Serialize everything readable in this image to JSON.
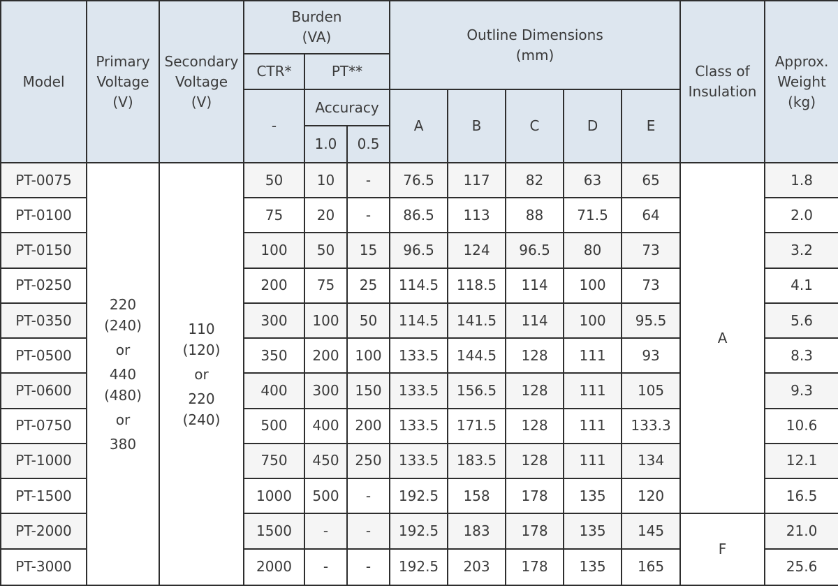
{
  "header": {
    "model": "Model",
    "primary_voltage": [
      "Primary",
      "Voltage",
      "(V)"
    ],
    "secondary_voltage": [
      "Secondary",
      "Voltage",
      "(V)"
    ],
    "burden": [
      "Burden",
      "(VA)"
    ],
    "ctr": "CTR*",
    "pt": "PT**",
    "dash": "-",
    "accuracy": "Accuracy",
    "acc_10": "1.0",
    "acc_05": "0.5",
    "outline": [
      "Outline Dimensions",
      "(mm)"
    ],
    "dim_a": "A",
    "dim_b": "B",
    "dim_c": "C",
    "dim_d": "D",
    "dim_e": "E",
    "insulation": [
      "Class of",
      "Insulation"
    ],
    "weight": [
      "Approx.",
      "Weight",
      "(kg)"
    ]
  },
  "primary_voltage_options": [
    "220",
    "(240)",
    "or",
    "440",
    "(480)",
    "or",
    "380"
  ],
  "secondary_voltage_options": [
    "110",
    "(120)",
    "or",
    "220",
    "(240)"
  ],
  "insulation_classes": [
    "A",
    "F"
  ],
  "rows": [
    {
      "model": "PT-0075",
      "ctr": "50",
      "acc10": "10",
      "acc05": "-",
      "a": "76.5",
      "b": "117",
      "c": "82",
      "d": "63",
      "e": "65",
      "weight": "1.8"
    },
    {
      "model": "PT-0100",
      "ctr": "75",
      "acc10": "20",
      "acc05": "-",
      "a": "86.5",
      "b": "113",
      "c": "88",
      "d": "71.5",
      "e": "64",
      "weight": "2.0"
    },
    {
      "model": "PT-0150",
      "ctr": "100",
      "acc10": "50",
      "acc05": "15",
      "a": "96.5",
      "b": "124",
      "c": "96.5",
      "d": "80",
      "e": "73",
      "weight": "3.2"
    },
    {
      "model": "PT-0250",
      "ctr": "200",
      "acc10": "75",
      "acc05": "25",
      "a": "114.5",
      "b": "118.5",
      "c": "114",
      "d": "100",
      "e": "73",
      "weight": "4.1"
    },
    {
      "model": "PT-0350",
      "ctr": "300",
      "acc10": "100",
      "acc05": "50",
      "a": "114.5",
      "b": "141.5",
      "c": "114",
      "d": "100",
      "e": "95.5",
      "weight": "5.6"
    },
    {
      "model": "PT-0500",
      "ctr": "350",
      "acc10": "200",
      "acc05": "100",
      "a": "133.5",
      "b": "144.5",
      "c": "128",
      "d": "111",
      "e": "93",
      "weight": "8.3"
    },
    {
      "model": "PT-0600",
      "ctr": "400",
      "acc10": "300",
      "acc05": "150",
      "a": "133.5",
      "b": "156.5",
      "c": "128",
      "d": "111",
      "e": "105",
      "weight": "9.3"
    },
    {
      "model": "PT-0750",
      "ctr": "500",
      "acc10": "400",
      "acc05": "200",
      "a": "133.5",
      "b": "171.5",
      "c": "128",
      "d": "111",
      "e": "133.3",
      "weight": "10.6"
    },
    {
      "model": "PT-1000",
      "ctr": "750",
      "acc10": "450",
      "acc05": "250",
      "a": "133.5",
      "b": "183.5",
      "c": "128",
      "d": "111",
      "e": "134",
      "weight": "12.1"
    },
    {
      "model": "PT-1500",
      "ctr": "1000",
      "acc10": "500",
      "acc05": "-",
      "a": "192.5",
      "b": "158",
      "c": "178",
      "d": "135",
      "e": "120",
      "weight": "16.5"
    },
    {
      "model": "PT-2000",
      "ctr": "1500",
      "acc10": "-",
      "acc05": "-",
      "a": "192.5",
      "b": "183",
      "c": "178",
      "d": "135",
      "e": "145",
      "weight": "21.0"
    },
    {
      "model": "PT-3000",
      "ctr": "2000",
      "acc10": "-",
      "acc05": "-",
      "a": "192.5",
      "b": "203",
      "c": "178",
      "d": "135",
      "e": "165",
      "weight": "25.6"
    }
  ]
}
